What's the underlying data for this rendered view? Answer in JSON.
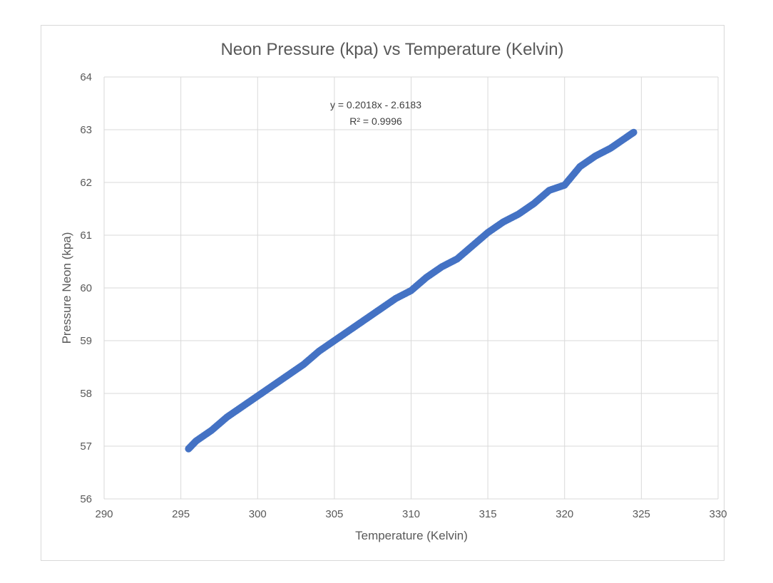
{
  "chart_data": {
    "type": "scatter",
    "title": "Neon Pressure (kpa) vs Temperature (Kelvin)",
    "xlabel": "Temperature (Kelvin)",
    "ylabel": "Pressure Neon (kpa)",
    "xlim": [
      290,
      330
    ],
    "ylim": [
      56,
      64
    ],
    "xticks": [
      290,
      295,
      300,
      305,
      310,
      315,
      320,
      325,
      330
    ],
    "yticks": [
      56,
      57,
      58,
      59,
      60,
      61,
      62,
      63,
      64
    ],
    "x_tick_labels": [
      "290",
      "295",
      "300",
      "305",
      "310",
      "315",
      "320",
      "325",
      "330"
    ],
    "y_tick_labels": [
      "56",
      "57",
      "58",
      "59",
      "60",
      "61",
      "62",
      "63",
      "64"
    ],
    "grid": true,
    "legend": "none",
    "marker_color": "#4472c4",
    "annotations": [
      "y = 0.2018x - 2.6183",
      "R² = 0.9996"
    ],
    "series": [
      {
        "x": [
          295.5,
          296,
          297,
          298,
          299,
          300,
          301,
          302,
          303,
          304,
          305,
          306,
          307,
          308,
          309,
          310,
          311,
          312,
          313,
          314,
          315,
          316,
          317,
          318,
          319,
          320,
          321,
          322,
          323,
          324,
          324.5
        ],
        "y": [
          56.95,
          57.1,
          57.3,
          57.55,
          57.75,
          57.95,
          58.15,
          58.35,
          58.55,
          58.8,
          59.0,
          59.2,
          59.4,
          59.6,
          59.8,
          59.95,
          60.2,
          60.4,
          60.55,
          60.8,
          61.05,
          61.25,
          61.4,
          61.6,
          61.85,
          61.95,
          62.3,
          62.5,
          62.65,
          62.85,
          62.95
        ]
      }
    ]
  }
}
